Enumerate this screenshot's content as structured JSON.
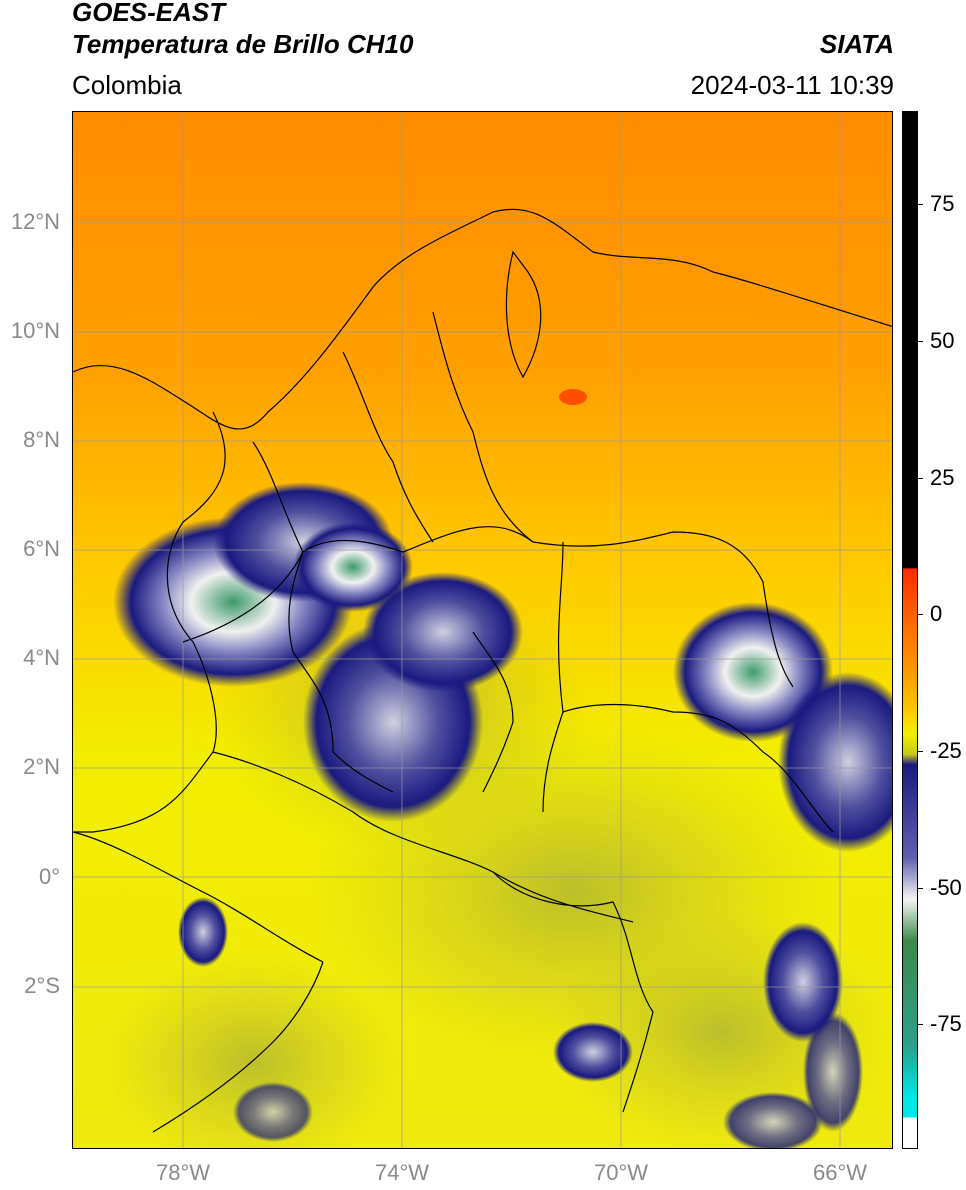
{
  "header": {
    "satellite": "GOES-EAST",
    "product": "Temperatura de Brillo CH10",
    "region": "Colombia",
    "organization": "SIATA",
    "datetime": "2024-03-11 10:39"
  },
  "map": {
    "lat_labels": [
      "12°N",
      "10°N",
      "8°N",
      "6°N",
      "4°N",
      "2°N",
      "0°",
      "2°S"
    ],
    "lon_labels": [
      "78°W",
      "74°W",
      "70°W",
      "66°W"
    ]
  },
  "colorbar": {
    "labels": [
      "75",
      "50",
      "25",
      "0",
      "-25",
      "-50",
      "-75"
    ],
    "colors": {
      "black": "#000000",
      "red": "#ff2a00",
      "orange": "#ff9900",
      "yellow": "#f2f000",
      "olive": "#c7c71a",
      "navy": "#1a1a80",
      "white": "#f4f4f4",
      "green": "#3d8a4a",
      "teal": "#2aa08a",
      "cyan": "#00e5e5"
    }
  }
}
